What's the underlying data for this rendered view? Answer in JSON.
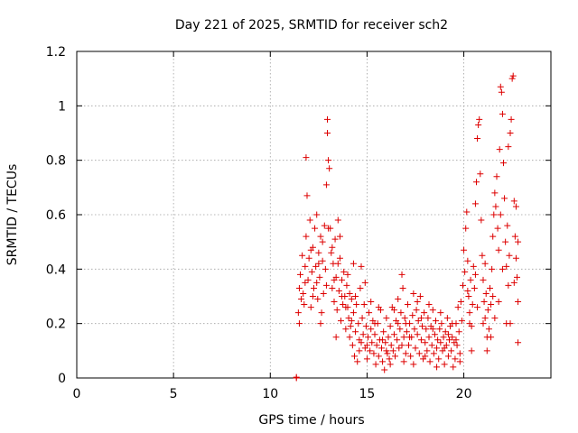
{
  "chart_data": {
    "type": "scatter",
    "title": "Day 221 of 2025, SRMTID for receiver sch2",
    "xlabel": "GPS time / hours",
    "ylabel": "SRMTID / TECUs",
    "xlim": [
      0,
      24.5
    ],
    "ylim": [
      0,
      1.2
    ],
    "grid": true,
    "x_ticks": [
      0,
      5,
      10,
      15,
      20
    ],
    "x_tick_labels": [
      "0",
      "5",
      "10",
      "15",
      "20"
    ],
    "y_ticks": [
      0,
      0.2,
      0.4,
      0.6,
      0.8,
      1.0,
      1.2
    ],
    "y_tick_labels": [
      "0",
      "0.2",
      "0.4",
      "0.6",
      "0.8",
      "1",
      "1.2"
    ],
    "marker": "+",
    "color": "#dd0000",
    "series": [
      {
        "name": "sch2",
        "points": [
          [
            11.35,
            0.0
          ],
          [
            11.35,
            0.003
          ],
          [
            11.45,
            0.24
          ],
          [
            11.5,
            0.33
          ],
          [
            11.55,
            0.38
          ],
          [
            11.6,
            0.29
          ],
          [
            11.65,
            0.45
          ],
          [
            11.7,
            0.31
          ],
          [
            11.75,
            0.27
          ],
          [
            11.8,
            0.41
          ],
          [
            11.85,
            0.81
          ],
          [
            11.85,
            0.52
          ],
          [
            11.9,
            0.67
          ],
          [
            11.95,
            0.36
          ],
          [
            12.0,
            0.44
          ],
          [
            12.05,
            0.58
          ],
          [
            12.1,
            0.26
          ],
          [
            12.15,
            0.39
          ],
          [
            12.2,
            0.48
          ],
          [
            12.25,
            0.33
          ],
          [
            12.3,
            0.55
          ],
          [
            12.35,
            0.41
          ],
          [
            12.4,
            0.6
          ],
          [
            12.45,
            0.29
          ],
          [
            12.5,
            0.46
          ],
          [
            12.55,
            0.37
          ],
          [
            12.6,
            0.52
          ],
          [
            12.65,
            0.24
          ],
          [
            12.7,
            0.43
          ],
          [
            12.75,
            0.31
          ],
          [
            12.8,
            0.56
          ],
          [
            12.85,
            0.4
          ],
          [
            12.9,
            0.71
          ],
          [
            12.95,
            0.95
          ],
          [
            12.95,
            0.9
          ],
          [
            13.0,
            0.8
          ],
          [
            13.05,
            0.77
          ],
          [
            13.1,
            0.55
          ],
          [
            13.15,
            0.46
          ],
          [
            13.2,
            0.33
          ],
          [
            13.25,
            0.42
          ],
          [
            13.3,
            0.28
          ],
          [
            13.35,
            0.51
          ],
          [
            13.4,
            0.37
          ],
          [
            13.45,
            0.25
          ],
          [
            13.5,
            0.58
          ],
          [
            13.55,
            0.32
          ],
          [
            13.6,
            0.44
          ],
          [
            13.65,
            0.21
          ],
          [
            13.7,
            0.36
          ],
          [
            13.75,
            0.27
          ],
          [
            13.8,
            0.39
          ],
          [
            13.85,
            0.3
          ],
          [
            13.9,
            0.18
          ],
          [
            13.95,
            0.34
          ],
          [
            14.0,
            0.26
          ],
          [
            14.05,
            0.22
          ],
          [
            14.1,
            0.31
          ],
          [
            14.15,
            0.19
          ],
          [
            14.2,
            0.29
          ],
          [
            14.25,
            0.12
          ],
          [
            14.3,
            0.24
          ],
          [
            14.35,
            0.08
          ],
          [
            14.4,
            0.17
          ],
          [
            14.45,
            0.27
          ],
          [
            14.5,
            0.06
          ],
          [
            14.55,
            0.2
          ],
          [
            14.6,
            0.14
          ],
          [
            14.65,
            0.33
          ],
          [
            14.7,
            0.41
          ],
          [
            14.75,
            0.22
          ],
          [
            14.8,
            0.16
          ],
          [
            14.85,
            0.27
          ],
          [
            14.9,
            0.11
          ],
          [
            14.95,
            0.19
          ],
          [
            15.0,
            0.07
          ],
          [
            15.05,
            0.15
          ],
          [
            15.1,
            0.24
          ],
          [
            15.15,
            0.1
          ],
          [
            15.2,
            0.18
          ],
          [
            15.25,
            0.13
          ],
          [
            15.3,
            0.21
          ],
          [
            15.35,
            0.09
          ],
          [
            15.4,
            0.16
          ],
          [
            15.45,
            0.05
          ],
          [
            15.5,
            0.12
          ],
          [
            15.55,
            0.2
          ],
          [
            15.6,
            0.08
          ],
          [
            15.65,
            0.14
          ],
          [
            15.7,
            0.25
          ],
          [
            15.75,
            0.11
          ],
          [
            15.8,
            0.06
          ],
          [
            15.85,
            0.17
          ],
          [
            15.9,
            0.03
          ],
          [
            15.95,
            0.13
          ],
          [
            16.0,
            0.22
          ],
          [
            16.05,
            0.09
          ],
          [
            16.1,
            0.15
          ],
          [
            16.15,
            0.07
          ],
          [
            16.2,
            0.19
          ],
          [
            16.25,
            0.12
          ],
          [
            16.3,
            0.26
          ],
          [
            16.35,
            0.1
          ],
          [
            16.4,
            0.16
          ],
          [
            16.45,
            0.08
          ],
          [
            16.5,
            0.21
          ],
          [
            16.55,
            0.14
          ],
          [
            16.6,
            0.29
          ],
          [
            16.65,
            0.11
          ],
          [
            16.7,
            0.18
          ],
          [
            16.75,
            0.24
          ],
          [
            16.8,
            0.38
          ],
          [
            16.85,
            0.33
          ],
          [
            16.9,
            0.15
          ],
          [
            16.95,
            0.22
          ],
          [
            17.0,
            0.09
          ],
          [
            17.05,
            0.17
          ],
          [
            17.1,
            0.27
          ],
          [
            17.15,
            0.12
          ],
          [
            17.2,
            0.2
          ],
          [
            17.25,
            0.08
          ],
          [
            17.3,
            0.15
          ],
          [
            17.35,
            0.23
          ],
          [
            17.4,
            0.31
          ],
          [
            17.45,
            0.18
          ],
          [
            17.5,
            0.11
          ],
          [
            17.55,
            0.25
          ],
          [
            17.6,
            0.16
          ],
          [
            17.65,
            0.21
          ],
          [
            17.7,
            0.09
          ],
          [
            17.75,
            0.3
          ],
          [
            17.8,
            0.14
          ],
          [
            17.85,
            0.19
          ],
          [
            17.9,
            0.07
          ],
          [
            17.95,
            0.24
          ],
          [
            18.0,
            0.13
          ],
          [
            18.05,
            0.18
          ],
          [
            18.1,
            0.1
          ],
          [
            18.15,
            0.22
          ],
          [
            18.2,
            0.15
          ],
          [
            18.25,
            0.06
          ],
          [
            18.3,
            0.19
          ],
          [
            18.35,
            0.12
          ],
          [
            18.4,
            0.25
          ],
          [
            18.45,
            0.09
          ],
          [
            18.5,
            0.16
          ],
          [
            18.55,
            0.21
          ],
          [
            18.6,
            0.11
          ],
          [
            18.65,
            0.14
          ],
          [
            18.7,
            0.07
          ],
          [
            18.75,
            0.18
          ],
          [
            18.8,
            0.13
          ],
          [
            18.85,
            0.2
          ],
          [
            18.9,
            0.1
          ],
          [
            18.95,
            0.15
          ],
          [
            19.0,
            0.05
          ],
          [
            19.05,
            0.17
          ],
          [
            19.1,
            0.12
          ],
          [
            19.15,
            0.22
          ],
          [
            19.2,
            0.08
          ],
          [
            19.25,
            0.14
          ],
          [
            19.3,
            0.19
          ],
          [
            19.35,
            0.1
          ],
          [
            19.4,
            0.15
          ],
          [
            19.45,
            0.04
          ],
          [
            19.5,
            0.13
          ],
          [
            19.55,
            0.07
          ],
          [
            19.6,
            0.2
          ],
          [
            19.65,
            0.12
          ],
          [
            19.7,
            0.26
          ],
          [
            19.75,
            0.17
          ],
          [
            19.8,
            0.09
          ],
          [
            19.85,
            0.28
          ],
          [
            19.9,
            0.21
          ],
          [
            19.95,
            0.34
          ],
          [
            20.0,
            0.47
          ],
          [
            20.05,
            0.39
          ],
          [
            20.1,
            0.55
          ],
          [
            20.15,
            0.61
          ],
          [
            20.2,
            0.43
          ],
          [
            20.25,
            0.3
          ],
          [
            20.3,
            0.24
          ],
          [
            20.35,
            0.36
          ],
          [
            20.4,
            0.19
          ],
          [
            20.45,
            0.27
          ],
          [
            20.5,
            0.41
          ],
          [
            20.55,
            0.33
          ],
          [
            20.6,
            0.64
          ],
          [
            20.65,
            0.72
          ],
          [
            20.7,
            0.88
          ],
          [
            20.75,
            0.93
          ],
          [
            20.8,
            0.95
          ],
          [
            20.85,
            0.75
          ],
          [
            20.9,
            0.58
          ],
          [
            20.95,
            0.45
          ],
          [
            21.0,
            0.36
          ],
          [
            21.05,
            0.28
          ],
          [
            21.1,
            0.22
          ],
          [
            21.15,
            0.31
          ],
          [
            21.2,
            0.15
          ],
          [
            21.25,
            0.25
          ],
          [
            21.3,
            0.18
          ],
          [
            21.35,
            0.33
          ],
          [
            21.4,
            0.27
          ],
          [
            21.45,
            0.4
          ],
          [
            21.5,
            0.52
          ],
          [
            21.55,
            0.6
          ],
          [
            21.6,
            0.68
          ],
          [
            21.65,
            0.63
          ],
          [
            21.7,
            0.74
          ],
          [
            21.75,
            0.55
          ],
          [
            21.8,
            0.47
          ],
          [
            21.85,
            0.84
          ],
          [
            21.9,
            1.07
          ],
          [
            21.95,
            1.05
          ],
          [
            22.0,
            0.97
          ],
          [
            22.05,
            0.79
          ],
          [
            22.1,
            0.66
          ],
          [
            22.15,
            0.5
          ],
          [
            22.2,
            0.41
          ],
          [
            22.25,
            0.56
          ],
          [
            22.3,
            0.34
          ],
          [
            22.35,
            0.45
          ],
          [
            22.4,
            0.9
          ],
          [
            22.45,
            0.95
          ],
          [
            22.5,
            1.1
          ],
          [
            22.55,
            1.11
          ],
          [
            22.6,
            0.65
          ],
          [
            22.65,
            0.52
          ],
          [
            22.7,
            0.44
          ],
          [
            22.75,
            0.37
          ],
          [
            22.8,
            0.28
          ],
          [
            12.1,
            0.47
          ],
          [
            12.4,
            0.35
          ],
          [
            12.7,
            0.5
          ],
          [
            13.2,
            0.48
          ],
          [
            13.6,
            0.52
          ],
          [
            13.9,
            0.26
          ],
          [
            14.2,
            0.21
          ],
          [
            14.6,
            0.1
          ],
          [
            15.2,
            0.28
          ],
          [
            15.8,
            0.14
          ],
          [
            16.4,
            0.25
          ],
          [
            17.0,
            0.2
          ],
          [
            17.6,
            0.28
          ],
          [
            18.2,
            0.27
          ],
          [
            18.8,
            0.24
          ],
          [
            19.4,
            0.2
          ],
          [
            20.2,
            0.32
          ],
          [
            20.6,
            0.38
          ],
          [
            21.0,
            0.2
          ],
          [
            21.4,
            0.15
          ],
          [
            21.8,
            0.28
          ],
          [
            22.2,
            0.2
          ],
          [
            22.6,
            0.35
          ],
          [
            22.8,
            0.5
          ],
          [
            11.5,
            0.2
          ],
          [
            11.8,
            0.35
          ],
          [
            12.2,
            0.3
          ],
          [
            12.5,
            0.42
          ],
          [
            12.9,
            0.34
          ],
          [
            13.3,
            0.36
          ],
          [
            13.7,
            0.3
          ],
          [
            14.1,
            0.15
          ],
          [
            14.7,
            0.13
          ],
          [
            15.4,
            0.2
          ],
          [
            16.0,
            0.1
          ],
          [
            16.6,
            0.2
          ],
          [
            17.2,
            0.15
          ],
          [
            17.8,
            0.22
          ],
          [
            18.4,
            0.18
          ],
          [
            19.0,
            0.11
          ],
          [
            19.6,
            0.14
          ],
          [
            20.3,
            0.2
          ],
          [
            20.7,
            0.26
          ],
          [
            21.1,
            0.42
          ],
          [
            21.5,
            0.3
          ],
          [
            21.9,
            0.6
          ],
          [
            22.3,
            0.85
          ],
          [
            22.7,
            0.63
          ],
          [
            13.0,
            0.55
          ],
          [
            13.5,
            0.42
          ],
          [
            14.0,
            0.38
          ],
          [
            14.4,
            0.3
          ],
          [
            15.0,
            0.12
          ],
          [
            15.6,
            0.26
          ],
          [
            16.2,
            0.05
          ],
          [
            16.8,
            0.12
          ],
          [
            17.4,
            0.05
          ],
          [
            18.0,
            0.08
          ],
          [
            18.6,
            0.04
          ],
          [
            19.2,
            0.16
          ],
          [
            19.8,
            0.06
          ],
          [
            20.4,
            0.1
          ],
          [
            21.2,
            0.1
          ],
          [
            21.6,
            0.22
          ],
          [
            22.0,
            0.4
          ],
          [
            22.4,
            0.2
          ],
          [
            22.8,
            0.13
          ],
          [
            12.6,
            0.2
          ],
          [
            13.4,
            0.15
          ],
          [
            14.3,
            0.42
          ],
          [
            14.9,
            0.35
          ],
          [
            16.9,
            0.06
          ]
        ]
      }
    ]
  }
}
